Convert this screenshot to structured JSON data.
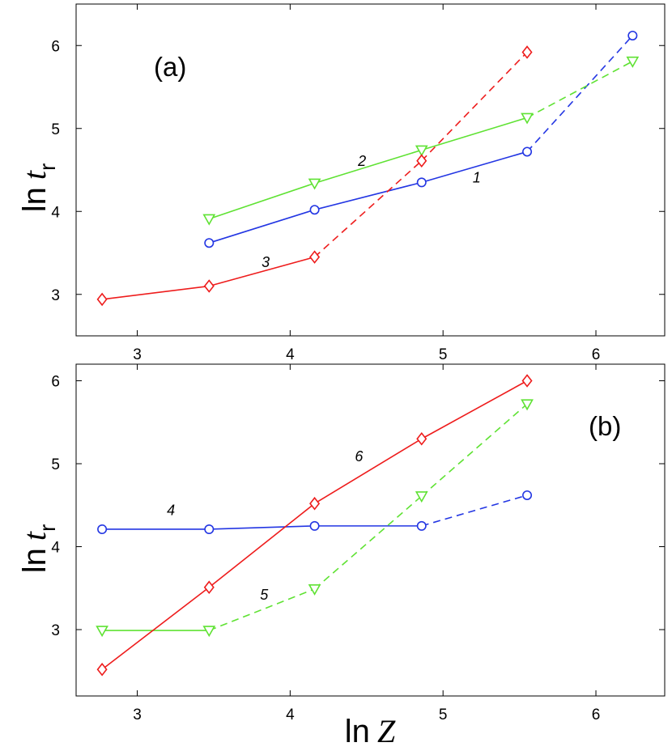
{
  "chart_data": [
    {
      "type": "line",
      "panel_label": "(a)",
      "xlabel": "",
      "ylabel": {
        "main": "ln",
        "var": "t",
        "sub": "r"
      },
      "xlim": [
        2.6,
        6.45
      ],
      "ylim": [
        2.5,
        6.5
      ],
      "xticks": [
        3,
        4,
        5,
        6
      ],
      "yticks": [
        3,
        4,
        5,
        6
      ],
      "series": [
        {
          "name": "1",
          "color": "#2336e3",
          "marker": "circle",
          "x": [
            3.47,
            4.16,
            4.86,
            5.55,
            6.24
          ],
          "y": [
            3.62,
            4.02,
            4.35,
            4.72,
            6.12
          ],
          "dashed_from_index": 3,
          "label_pos": [
            5.22,
            4.35
          ]
        },
        {
          "name": "2",
          "color": "#5fe233",
          "marker": "triangle-down",
          "x": [
            3.47,
            4.16,
            4.86,
            5.55,
            6.24
          ],
          "y": [
            3.91,
            4.34,
            4.74,
            5.13,
            5.81
          ],
          "dashed_from_index": 3,
          "label_pos": [
            4.47,
            4.55
          ]
        },
        {
          "name": "3",
          "color": "#ee1c1c",
          "marker": "diamond",
          "x": [
            2.77,
            3.47,
            4.16,
            4.86,
            5.55
          ],
          "y": [
            2.94,
            3.1,
            3.45,
            4.61,
            5.92
          ],
          "dashed_from_index": 2,
          "label_pos": [
            3.84,
            3.33
          ]
        }
      ]
    },
    {
      "type": "line",
      "panel_label": "(b)",
      "xlabel": {
        "main": "ln",
        "var": "Z"
      },
      "ylabel": {
        "main": "ln",
        "var": "t",
        "sub": "r"
      },
      "xlim": [
        2.6,
        6.45
      ],
      "ylim": [
        2.2,
        6.2
      ],
      "xticks": [
        3,
        4,
        5,
        6
      ],
      "yticks": [
        3,
        4,
        5,
        6
      ],
      "series": [
        {
          "name": "4",
          "color": "#2336e3",
          "marker": "circle",
          "x": [
            2.77,
            3.47,
            4.16,
            4.86,
            5.55
          ],
          "y": [
            4.21,
            4.21,
            4.25,
            4.25,
            4.62
          ],
          "dashed_from_index": 3,
          "label_pos": [
            3.22,
            4.38
          ]
        },
        {
          "name": "5",
          "color": "#5fe233",
          "marker": "triangle-down",
          "x": [
            2.77,
            3.47,
            4.16,
            4.86,
            5.55
          ],
          "y": [
            2.99,
            2.99,
            3.49,
            4.61,
            5.72
          ],
          "dashed_from_index": 1,
          "label_pos": [
            3.83,
            3.36
          ]
        },
        {
          "name": "6",
          "color": "#ee1c1c",
          "marker": "diamond",
          "x": [
            2.77,
            3.47,
            4.16,
            4.86,
            5.55
          ],
          "y": [
            2.52,
            3.51,
            4.52,
            5.3,
            6.0
          ],
          "dashed_from_index": null,
          "label_pos": [
            4.45,
            5.03
          ]
        }
      ]
    }
  ]
}
